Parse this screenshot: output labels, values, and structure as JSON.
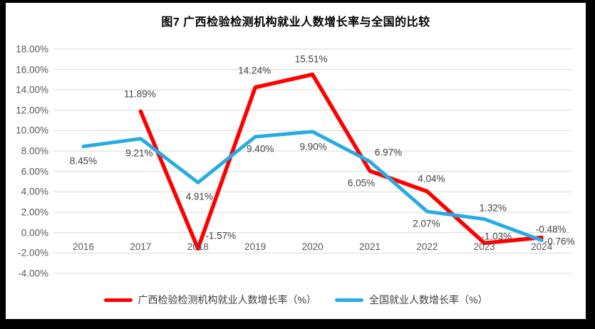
{
  "chart_data": {
    "type": "line",
    "title": "图7 广西检验检测机构就业人数增长率与全国的比较",
    "categories": [
      "2016",
      "2017",
      "2018",
      "2019",
      "2020",
      "2021",
      "2022",
      "2023",
      "2024"
    ],
    "series": [
      {
        "name": "广西检验检测机构就业人数增长率（%）",
        "color": "#ff0000",
        "values": [
          null,
          11.89,
          -1.57,
          14.24,
          15.51,
          6.05,
          4.04,
          -1.03,
          -0.48
        ],
        "labels": [
          null,
          "11.89%",
          "-1.57%",
          "14.24%",
          "15.51%",
          "6.05%",
          "4.04%",
          "-1.03%",
          "-0.48%"
        ]
      },
      {
        "name": "全国就业人数增长率（%）",
        "color": "#29abe2",
        "values": [
          8.45,
          9.21,
          4.91,
          9.4,
          9.9,
          6.97,
          2.07,
          1.32,
          -0.76
        ],
        "labels": [
          "8.45%",
          "9.21%",
          "4.91%",
          "9.40%",
          "9.90%",
          "6.97%",
          "2.07%",
          "1.32%",
          "-0.76%"
        ]
      }
    ],
    "y_axis": {
      "min": -4,
      "max": 18,
      "step": 2,
      "tick_labels": [
        "18.00%",
        "16.00%",
        "14.00%",
        "12.00%",
        "10.00%",
        "8.00%",
        "6.00%",
        "4.00%",
        "2.00%",
        "0.00%",
        "-2.00%",
        "-4.00%"
      ]
    },
    "grid": true,
    "gridline_color": "#d9d9d9",
    "label_color": "#404040",
    "axis_label_color": "#595959",
    "legend_position": "bottom"
  }
}
